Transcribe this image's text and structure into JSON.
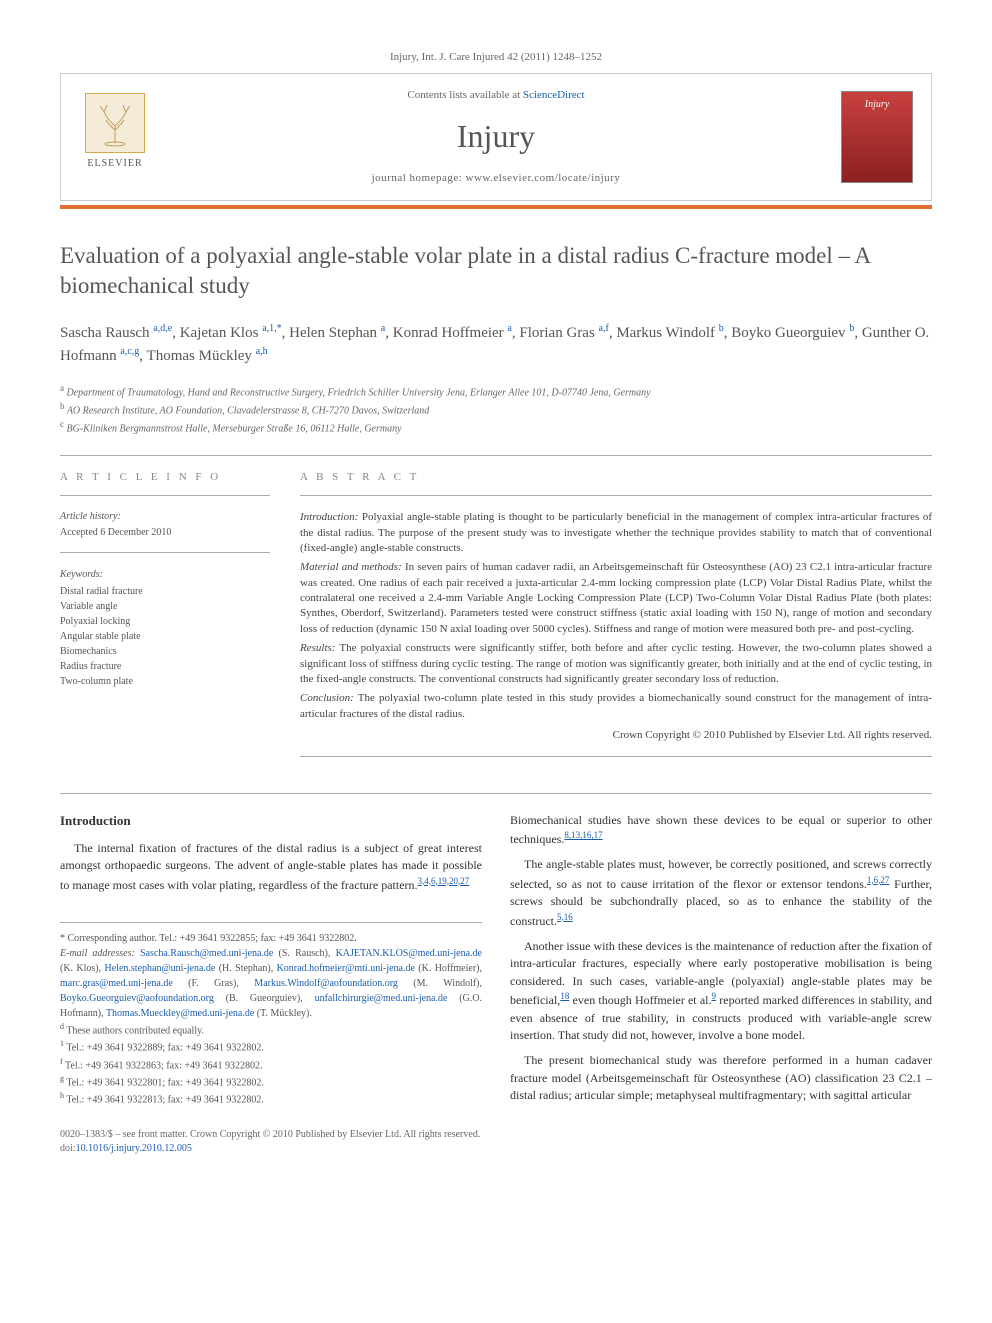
{
  "header": {
    "citation": "Injury, Int. J. Care Injured 42 (2011) 1248–1252",
    "contents_prefix": "Contents lists available at ",
    "contents_link": "ScienceDirect",
    "journal_name": "Injury",
    "homepage_prefix": "journal homepage: ",
    "homepage": "www.elsevier.com/locate/injury",
    "elsevier_label": "ELSEVIER",
    "cover_label": "Injury"
  },
  "article": {
    "title": "Evaluation of a polyaxial angle-stable volar plate in a distal radius C-fracture model – A biomechanical study"
  },
  "authors_html": [
    {
      "name": "Sascha Rausch",
      "sup": "a,d,e"
    },
    {
      "name": "Kajetan Klos",
      "sup": "a,1,*"
    },
    {
      "name": "Helen Stephan",
      "sup": "a"
    },
    {
      "name": "Konrad Hoffmeier",
      "sup": "a"
    },
    {
      "name": "Florian Gras",
      "sup": "a,f"
    },
    {
      "name": "Markus Windolf",
      "sup": "b"
    },
    {
      "name": "Boyko Gueorguiev",
      "sup": "b"
    },
    {
      "name": "Gunther O. Hofmann",
      "sup": "a,c,g"
    },
    {
      "name": "Thomas Mückley",
      "sup": "a,h"
    }
  ],
  "affiliations": [
    {
      "sup": "a",
      "text": "Department of Traumatology, Hand and Reconstructive Surgery, Friedrich Schiller University Jena, Erlanger Allee 101, D-07740 Jena, Germany"
    },
    {
      "sup": "b",
      "text": "AO Research Institute, AO Foundation, Clavadelerstrasse 8, CH-7270 Davos, Switzerland"
    },
    {
      "sup": "c",
      "text": "BG-Kliniken Bergmannstrost Halle, Merseburger Straße 16, 06112 Halle, Germany"
    }
  ],
  "meta": {
    "article_info_heading": "A R T I C L E  I N F O",
    "history_heading": "Article history:",
    "accepted": "Accepted 6 December 2010",
    "keywords_heading": "Keywords:",
    "keywords": [
      "Distal radial fracture",
      "Variable angle",
      "Polyaxial locking",
      "Angular stable plate",
      "Biomechanics",
      "Radius fracture",
      "Two-column plate"
    ]
  },
  "abstract": {
    "heading": "A B S T R A C T",
    "intro_label": "Introduction:",
    "intro": "Polyaxial angle-stable plating is thought to be particularly beneficial in the management of complex intra-articular fractures of the distal radius. The purpose of the present study was to investigate whether the technique provides stability to match that of conventional (fixed-angle) angle-stable constructs.",
    "methods_label": "Material and methods:",
    "methods": "In seven pairs of human cadaver radii, an Arbeitsgemeinschaft für Osteosynthese (AO) 23 C2.1 intra-articular fracture was created. One radius of each pair received a juxta-articular 2.4-mm locking compression plate (LCP) Volar Distal Radius Plate, whilst the contralateral one received a 2.4-mm Variable Angle Locking Compression Plate (LCP) Two-Column Volar Distal Radius Plate (both plates: Synthes, Oberdorf, Switzerland). Parameters tested were construct stiffness (static axial loading with 150 N), range of motion and secondary loss of reduction (dynamic 150 N axial loading over 5000 cycles). Stiffness and range of motion were measured both pre- and post-cycling.",
    "results_label": "Results:",
    "results": "The polyaxial constructs were significantly stiffer, both before and after cyclic testing. However, the two-column plates showed a significant loss of stiffness during cyclic testing. The range of motion was significantly greater, both initially and at the end of cyclic testing, in the fixed-angle constructs. The conventional constructs had significantly greater secondary loss of reduction.",
    "conclusion_label": "Conclusion:",
    "conclusion": "The polyaxial two-column plate tested in this study provides a biomechanically sound construct for the management of intra-articular fractures of the distal radius.",
    "copyright": "Crown Copyright © 2010 Published by Elsevier Ltd. All rights reserved."
  },
  "body": {
    "intro_heading": "Introduction",
    "p1_a": "The internal fixation of fractures of the distal radius is a subject of great interest amongst orthopaedic surgeons. The advent of angle-stable plates has made it possible to manage most cases with volar plating, regardless of the fracture pattern.",
    "p1_cite": "3,4,6,19,20,27",
    "p2_a": "Biomechanical studies have shown these devices to be equal or superior to other techniques.",
    "p2_cite": "8,13,16,17",
    "p3_a": "The angle-stable plates must, however, be correctly positioned, and screws correctly selected, so as not to cause irritation of the flexor or extensor tendons.",
    "p3_cite1": "1,6,27",
    "p3_b": " Further, screws should be subchondrally placed, so as to enhance the stability of the construct.",
    "p3_cite2": "5,16",
    "p4_a": "Another issue with these devices is the maintenance of reduction after the fixation of intra-articular fractures, especially where early postoperative mobilisation is being considered. In such cases, variable-angle (polyaxial) angle-stable plates may be beneficial,",
    "p4_cite1": "18",
    "p4_b": " even though Hoffmeier et al.",
    "p4_cite2": "9",
    "p4_c": " reported marked differences in stability, and even absence of true stability, in constructs produced with variable-angle screw insertion. That study did not, however, involve a bone model.",
    "p5": "The present biomechanical study was therefore performed in a human cadaver fracture model (Arbeitsgemeinschaft für Osteosynthese (AO) classification 23 C2.1 – distal radius; articular simple; metaphyseal multifragmentary; with sagittal articular"
  },
  "footnotes": {
    "corr_label": "* Corresponding author. Tel.: +49 3641 9322855; fax: +49 3641 9322802.",
    "email_label": "E-mail addresses:",
    "emails": [
      {
        "addr": "Sascha.Rausch@med.uni-jena.de",
        "who": "(S. Rausch),"
      },
      {
        "addr": "KAJETAN.KLOS@med.uni-jena.de",
        "who": "(K. Klos),"
      },
      {
        "addr": "Helen.stephan@uni-jena.de",
        "who": "(H. Stephan),"
      },
      {
        "addr": "Konrad.hofmeier@mti.uni-jena.de",
        "who": "(K. Hoffmeier),"
      },
      {
        "addr": "marc.gras@med.uni-jena.de",
        "who": "(F. Gras),"
      },
      {
        "addr": "Markus.Windolf@aofoundation.org",
        "who": "(M. Windolf),"
      },
      {
        "addr": "Boyko.Gueorguiev@aofoundation.org",
        "who": "(B. Gueorguiev),"
      },
      {
        "addr": "unfallchirurgie@med.uni-jena.de",
        "who": "(G.O. Hofmann),"
      },
      {
        "addr": "Thomas.Mueckley@med.uni-jena.de",
        "who": "(T. Mückley)."
      }
    ],
    "notes": [
      {
        "sup": "d",
        "text": "These authors contributed equally."
      },
      {
        "sup": "1",
        "text": "Tel.: +49 3641 9322889; fax: +49 3641 9322802."
      },
      {
        "sup": "f",
        "text": "Tel.: +49 3641 9322863; fax: +49 3641 9322802."
      },
      {
        "sup": "g",
        "text": "Tel.: +49 3641 9322801; fax: +49 3641 9322802."
      },
      {
        "sup": "h",
        "text": "Tel.: +49 3641 9322813; fax: +49 3641 9322802."
      }
    ]
  },
  "bottom": {
    "line1": "0020–1383/$ – see front matter. Crown Copyright © 2010 Published by Elsevier Ltd. All rights reserved.",
    "doi_label": "doi:",
    "doi": "10.1016/j.injury.2010.12.005"
  }
}
